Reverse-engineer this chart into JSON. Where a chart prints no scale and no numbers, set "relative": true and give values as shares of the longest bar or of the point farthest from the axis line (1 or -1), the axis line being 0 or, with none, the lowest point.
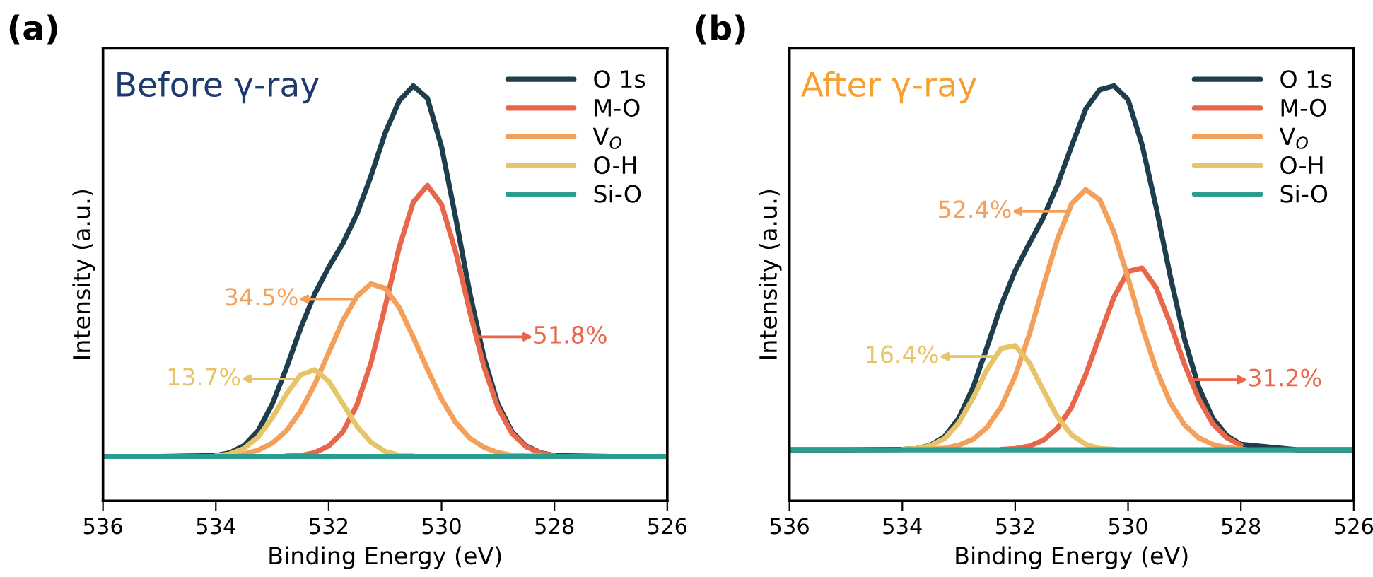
{
  "chart_data": [
    {
      "type": "line",
      "title": "Before γ-ray",
      "xlabel": "Binding Energy (eV)",
      "ylabel": "Intensity (a.u.)",
      "relative": true,
      "xlim": [
        536,
        526
      ],
      "xticks": [
        536,
        534,
        532,
        530,
        528,
        526
      ],
      "tick_labels": "x",
      "legend": "top right",
      "grid": false,
      "line_style": "solid",
      "x": [
        536,
        535,
        534,
        533.75,
        533.5,
        533.25,
        533,
        532.75,
        532.5,
        532.25,
        532,
        531.75,
        531.5,
        531.25,
        531,
        530.75,
        530.5,
        530.25,
        530,
        529.75,
        529.5,
        529.25,
        529,
        528.75,
        528.5,
        528.25,
        528,
        527,
        526
      ],
      "series": [
        {
          "name": "O 1s",
          "color": "#1f3e4d",
          "values": [
            0.107,
            0.107,
            0.109,
            0.116,
            0.133,
            0.169,
            0.233,
            0.32,
            0.415,
            0.498,
            0.563,
            0.62,
            0.691,
            0.783,
            0.886,
            0.964,
            1.0,
            0.97,
            0.853,
            0.682,
            0.501,
            0.346,
            0.233,
            0.166,
            0.132,
            0.116,
            0.109,
            0.107,
            0.107
          ]
        },
        {
          "name": "M-O",
          "color": "#e8674a",
          "values": [
            null,
            null,
            null,
            null,
            null,
            null,
            null,
            0.108,
            0.109,
            0.116,
            0.132,
            0.166,
            0.231,
            0.333,
            0.468,
            0.611,
            0.72,
            0.76,
            0.714,
            0.6,
            0.456,
            0.324,
            0.224,
            0.162,
            0.13,
            0.115,
            0.109,
            null,
            null
          ]
        },
        {
          "name": "V$_{O}$",
          "color": "#f5a05a",
          "values": [
            null,
            null,
            0.108,
            0.109,
            0.113,
            0.122,
            0.139,
            0.169,
            0.216,
            0.28,
            0.357,
            0.434,
            0.493,
            0.523,
            0.512,
            0.466,
            0.394,
            0.317,
            0.245,
            0.189,
            0.151,
            0.129,
            0.116,
            0.11,
            0.108,
            0.108,
            null,
            null,
            null
          ]
        },
        {
          "name": "O-H",
          "color": "#e8c468",
          "values": [
            null,
            null,
            0.108,
            0.113,
            0.126,
            0.154,
            0.2,
            0.257,
            0.303,
            0.316,
            0.288,
            0.234,
            0.18,
            0.141,
            0.119,
            0.11,
            0.108,
            null,
            null,
            null,
            null,
            null,
            null,
            null,
            null,
            null,
            null,
            null,
            null
          ]
        },
        {
          "name": "Si-O",
          "color": "#2a9d8f",
          "values": [
            0.107,
            0.107,
            0.107,
            0.107,
            0.107,
            0.107,
            0.107,
            0.107,
            0.107,
            0.107,
            0.107,
            0.107,
            0.107,
            0.107,
            0.107,
            0.107,
            0.107,
            0.107,
            0.107,
            0.107,
            0.107,
            0.107,
            0.107,
            0.107,
            0.107,
            0.107,
            0.107,
            0.107,
            0.107
          ]
        }
      ],
      "annotations": [
        "(a)",
        "51.8%",
        "34.5%",
        "13.7%"
      ]
    },
    {
      "type": "line",
      "title": "After γ-ray",
      "xlabel": "Binding Energy (eV)",
      "ylabel": "Intensity (a.u.)",
      "relative": true,
      "xlim": [
        536,
        526
      ],
      "xticks": [
        536,
        534,
        532,
        530,
        528,
        526
      ],
      "tick_labels": "x",
      "legend": "top right",
      "grid": false,
      "line_style": "solid",
      "x": [
        536,
        535,
        534,
        533.75,
        533.5,
        533.25,
        533,
        532.75,
        532.5,
        532.25,
        532,
        531.75,
        531.5,
        531.25,
        531,
        530.75,
        530.5,
        530.25,
        530,
        529.75,
        529.5,
        529.25,
        529,
        528.75,
        528.5,
        528.25,
        528,
        527,
        526
      ],
      "series": [
        {
          "name": "O 1s",
          "color": "#1f3e4d",
          "values": [
            0.123,
            0.123,
            0.124,
            0.126,
            0.134,
            0.155,
            0.199,
            0.272,
            0.37,
            0.471,
            0.554,
            0.62,
            0.683,
            0.762,
            0.855,
            0.944,
            0.991,
            1.0,
            0.967,
            0.857,
            0.706,
            0.54,
            0.39,
            0.275,
            0.199,
            0.157,
            0.136,
            0.123,
            0.123
          ]
        },
        {
          "name": "M-O",
          "color": "#e8674a",
          "values": [
            null,
            null,
            null,
            null,
            null,
            null,
            null,
            null,
            null,
            0.124,
            0.126,
            0.132,
            0.146,
            0.175,
            0.226,
            0.304,
            0.399,
            0.491,
            0.553,
            0.561,
            0.513,
            0.426,
            0.329,
            0.246,
            0.186,
            0.152,
            0.134,
            null,
            null
          ]
        },
        {
          "name": "V$_{O}$",
          "color": "#f5a05a",
          "values": [
            null,
            null,
            null,
            0.124,
            0.125,
            0.127,
            0.134,
            0.148,
            0.177,
            0.226,
            0.301,
            0.401,
            0.518,
            0.631,
            0.716,
            0.75,
            0.725,
            0.647,
            0.537,
            0.419,
            0.316,
            0.236,
            0.183,
            0.152,
            0.136,
            0.128,
            0.125,
            null,
            null
          ]
        },
        {
          "name": "O-H",
          "color": "#e8c468",
          "values": [
            null,
            null,
            0.124,
            0.126,
            0.133,
            0.15,
            0.188,
            0.247,
            0.316,
            0.367,
            0.374,
            0.333,
            0.266,
            0.202,
            0.159,
            0.136,
            0.126,
            0.124,
            null,
            null,
            null,
            null,
            null,
            null,
            null,
            null,
            null,
            null,
            null
          ]
        },
        {
          "name": "Si-O",
          "color": "#2a9d8f",
          "values": [
            0.123,
            0.123,
            0.123,
            0.123,
            0.123,
            0.123,
            0.123,
            0.123,
            0.123,
            0.123,
            0.123,
            0.123,
            0.123,
            0.123,
            0.123,
            0.123,
            0.123,
            0.123,
            0.123,
            0.123,
            0.123,
            0.123,
            0.123,
            0.123,
            0.123,
            0.123,
            0.123,
            0.123,
            0.123
          ]
        }
      ],
      "annotations": [
        "(b)",
        "31.2%",
        "52.4%",
        "16.4%"
      ]
    }
  ]
}
